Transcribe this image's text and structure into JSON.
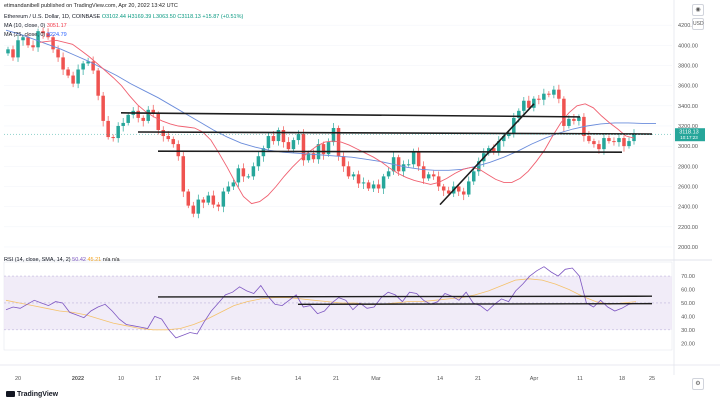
{
  "publish_line": "etimandanibell published on TradingView.com, Apr 20, 2022 13:42 UTC",
  "symbol_line": {
    "name": "Ethereum / U.S. Dollar, 1D, COINBASE",
    "ohlc": "O3102.44 H3169.39 L3063.50 C3118.13 +15.87 (+0.51%)"
  },
  "ma10_line": {
    "label": "MA (10, close, 0)",
    "value": "3051.17"
  },
  "ma25_line": {
    "label": "MA (25, close, 0)",
    "value": "3224.79"
  },
  "rsi_line": {
    "label": "RSI (14, close, SMA, 14, 2)",
    "value1": "50.42",
    "value2": "45.21",
    "rest": "n/a n/a"
  },
  "currency_badge": "USD",
  "price_tag": {
    "value": "3118.13",
    "time": "10:17:23"
  },
  "logo_text": "TradingView",
  "colors": {
    "up": "#26a69a",
    "down": "#ef5350",
    "ma10": "#f06070",
    "ma25": "#6a8cdb",
    "rsi": "#7e57c2",
    "rsi_ma": "#f5c26b",
    "rsi_band": "#ede7f6"
  },
  "chart_data": [
    {
      "type": "candlestick",
      "y_ticks": [
        2000,
        2200,
        2400,
        2600,
        2800,
        3000,
        3200,
        3400,
        3600,
        3800,
        4000,
        4200
      ],
      "ylim": [
        1950,
        4350
      ],
      "x_ticks": [
        "20",
        "2022",
        "10",
        "17",
        "24",
        "Feb",
        "14",
        "21",
        "Mar",
        "14",
        "21",
        "Apr",
        "11",
        "18",
        "25"
      ],
      "candles_close": [
        3960,
        3880,
        4050,
        4080,
        4000,
        3980,
        4140,
        4120,
        4080,
        3960,
        3880,
        3760,
        3700,
        3620,
        3760,
        3820,
        3840,
        3750,
        3500,
        3250,
        3090,
        3080,
        3200,
        3230,
        3310,
        3350,
        3280,
        3250,
        3360,
        3320,
        3160,
        3100,
        3070,
        3020,
        2900,
        2550,
        2410,
        2330,
        2470,
        2440,
        2510,
        2420,
        2400,
        2550,
        2600,
        2640,
        2780,
        2700,
        2700,
        2800,
        2900,
        2980,
        3100,
        3050,
        3160,
        3040,
        2970,
        3060,
        3120,
        2860,
        2930,
        2870,
        3020,
        2920,
        3040,
        3180,
        2900,
        2800,
        2700,
        2720,
        2630,
        2640,
        2580,
        2620,
        2580,
        2700,
        2750,
        2890,
        2750,
        2820,
        2820,
        2950,
        2800,
        2680,
        2720,
        2700,
        2600,
        2560,
        2530,
        2600,
        2550,
        2520,
        2650,
        2750,
        2850,
        2930,
        2980,
        2950,
        3050,
        3100,
        3120,
        3280,
        3350,
        3450,
        3380,
        3470,
        3460,
        3520,
        3510,
        3560,
        3470,
        3200,
        3270,
        3250,
        3290,
        3100,
        3050,
        3020,
        2970,
        3080,
        3050,
        3040,
        3080,
        3000,
        3050,
        3120
      ],
      "ma10": [
        4030,
        4040,
        4050,
        4030,
        4010,
        3950,
        3890,
        3820,
        3750,
        3680,
        3600,
        3500,
        3410,
        3340,
        3290,
        3250,
        3220,
        3200,
        3190,
        3180,
        3140,
        3060,
        2930,
        2790,
        2640,
        2500,
        2430,
        2450,
        2510,
        2600,
        2700,
        2790,
        2870,
        2940,
        3000,
        3040,
        3050,
        3040,
        3010,
        2970,
        2930,
        2890,
        2840,
        2780,
        2730,
        2690,
        2660,
        2640,
        2620,
        2640,
        2680,
        2730,
        2770,
        2790,
        2770,
        2720,
        2670,
        2640,
        2640,
        2680,
        2750,
        2850,
        2960,
        3100,
        3230,
        3330,
        3400,
        3420,
        3380,
        3300,
        3230,
        3170,
        3100,
        3080
      ],
      "ma25": [
        4150,
        4110,
        4060,
        4010,
        3960,
        3900,
        3840,
        3770,
        3700,
        3620,
        3550,
        3480,
        3400,
        3320,
        3240,
        3160,
        3090,
        3030,
        2990,
        2960,
        2940,
        2930,
        2920,
        2910,
        2900,
        2890,
        2870,
        2850,
        2820,
        2790,
        2770,
        2760,
        2760,
        2770,
        2800,
        2840,
        2890,
        2950,
        3020,
        3080,
        3130,
        3170,
        3200,
        3220,
        3230,
        3230,
        3225,
        3225
      ],
      "trendlines": [
        {
          "from": [
            "Jan 10",
            3330
          ],
          "to": [
            "Apr 11",
            3290
          ]
        },
        {
          "from": [
            "Jan 14",
            3140
          ],
          "to": [
            "Apr 25",
            3120
          ]
        },
        {
          "from": [
            "Jan 17",
            2950
          ],
          "to": [
            "Apr 18",
            2940
          ]
        },
        {
          "from": [
            "Mar 14",
            2420
          ],
          "to": [
            "Apr 1",
            3420
          ]
        }
      ]
    },
    {
      "type": "line",
      "title": "RSI",
      "y_ticks": [
        20,
        30,
        40,
        50,
        60,
        70
      ],
      "ylim": [
        15,
        76
      ],
      "band": [
        30,
        70
      ],
      "rsi": [
        45,
        47,
        46,
        49,
        52,
        50,
        48,
        51,
        50,
        43,
        41,
        39,
        44,
        47,
        49,
        44,
        38,
        34,
        33,
        32,
        31,
        40,
        38,
        30,
        24,
        26,
        28,
        27,
        36,
        44,
        50,
        56,
        58,
        62,
        59,
        57,
        63,
        55,
        49,
        48,
        52,
        56,
        47,
        48,
        42,
        44,
        50,
        54,
        52,
        45,
        50,
        46,
        47,
        54,
        58,
        56,
        51,
        58,
        57,
        52,
        49,
        51,
        57,
        55,
        52,
        58,
        50,
        48,
        44,
        49,
        53,
        51,
        59,
        64,
        70,
        74,
        77,
        73,
        70,
        75,
        76,
        70,
        50,
        47,
        52,
        47,
        44,
        46,
        49,
        50
      ],
      "rsi_ma": [
        52,
        50,
        48,
        46,
        44,
        43,
        41,
        38,
        35,
        33,
        31,
        30,
        30,
        31,
        34,
        38,
        43,
        48,
        51,
        53,
        54,
        54,
        53,
        52,
        51,
        50,
        50,
        49,
        49,
        50,
        51,
        51,
        52,
        53,
        54,
        56,
        59,
        63,
        67,
        68,
        67,
        64,
        60,
        55,
        51,
        49,
        50,
        51
      ],
      "trendlines": [
        {
          "from": [
            "Jan 17",
            54.5
          ],
          "to": [
            "Apr 25",
            55
          ]
        },
        {
          "from": [
            "Feb 14",
            49
          ],
          "to": [
            "Apr 25",
            49.5
          ]
        }
      ]
    }
  ]
}
